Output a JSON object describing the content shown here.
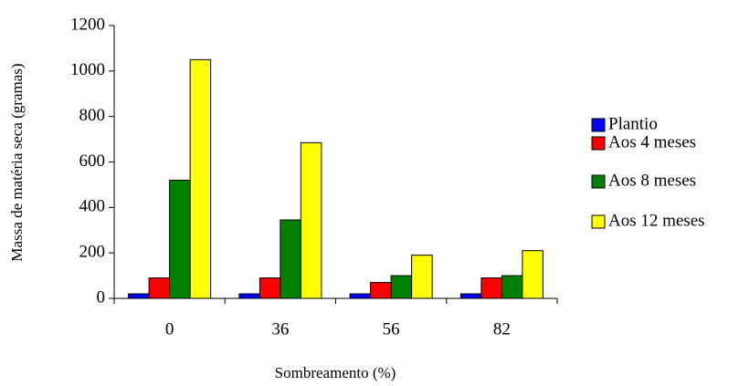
{
  "chart_data": {
    "type": "bar",
    "x_label": "Sombreamento (%)",
    "y_label": "Massa de matéria seca (gramas)",
    "categories": [
      "0",
      "36",
      "56",
      "82"
    ],
    "series": [
      {
        "name": "Plantio",
        "color": "#0000ff",
        "values": [
          20,
          20,
          20,
          20
        ]
      },
      {
        "name": "Aos 4 meses",
        "color": "#ff0000",
        "values": [
          90,
          90,
          70,
          90
        ]
      },
      {
        "name": "Aos 8 meses",
        "color": "#008000",
        "values": [
          520,
          345,
          100,
          100
        ]
      },
      {
        "name": "Aos 12 meses",
        "color": "#ffff00",
        "values": [
          1050,
          685,
          190,
          210
        ]
      }
    ],
    "ylim": [
      0,
      1200
    ],
    "yticks": [
      0,
      200,
      400,
      600,
      800,
      1000,
      1200
    ],
    "grid": false,
    "legend": "right"
  }
}
